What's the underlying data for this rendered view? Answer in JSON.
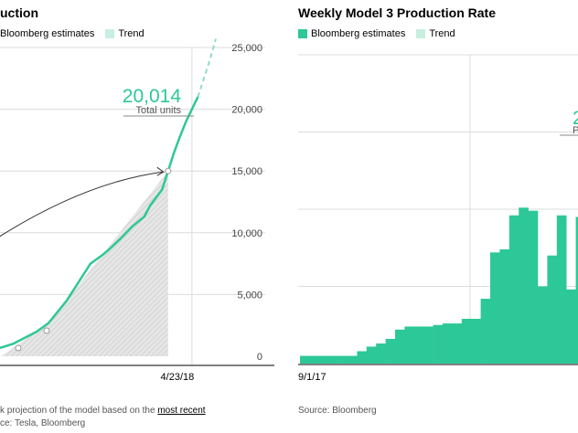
{
  "colors": {
    "estimate": "#2dc897",
    "trend": "#c7efe0",
    "grid": "#dcdcdc",
    "axis": "#000000",
    "shade": "#e6e6e6"
  },
  "left": {
    "title": "uction",
    "legend": {
      "estimate": "Bloomberg estimates",
      "trend": "Trend"
    },
    "callout": {
      "value": "20,014",
      "label": "Total units"
    },
    "footnote_prefix": "k projection of the model based on the ",
    "footnote_link": "most recent",
    "source": "ce: Tesla, Bloomberg"
  },
  "right": {
    "title": "Weekly Model 3 Production Rate",
    "legend": {
      "estimate": "Bloomberg estimates",
      "trend": "Trend"
    },
    "callout_fragment": "2",
    "callout_label_fragment": "P",
    "source": "Source: Bloomberg"
  },
  "chart_data": [
    {
      "type": "line",
      "title": "",
      "xlabel": "",
      "ylabel": "",
      "ylim": [
        0,
        25000
      ],
      "y_ticks": [
        "25,000",
        "20,000",
        "15,000",
        "10,000",
        "5,000",
        "0"
      ],
      "y_tick_values": [
        25000,
        20000,
        15000,
        10000,
        5000,
        0
      ],
      "x_tick_labels": [
        "4/23/18"
      ],
      "grid": true,
      "legend_position": "top-left",
      "series": [
        {
          "name": "Bloomberg estimates",
          "x": [
            0,
            4,
            8,
            12,
            16,
            20,
            22,
            26,
            30,
            34,
            38,
            40,
            44,
            48,
            52,
            54,
            58,
            60,
            62,
            64,
            66,
            68,
            70
          ],
          "values": [
            500,
            700,
            1000,
            1500,
            2000,
            2700,
            3300,
            4500,
            6000,
            7500,
            8200,
            8600,
            9500,
            10500,
            11300,
            12200,
            13500,
            15000,
            16500,
            17800,
            19000,
            20014,
            21000
          ]
        },
        {
          "name": "Trend",
          "x": [
            70,
            72,
            74,
            76
          ],
          "values": [
            21000,
            22500,
            24000,
            25700
          ]
        }
      ],
      "annotations": [
        {
          "text": "20,014",
          "sub": "Total units"
        }
      ]
    },
    {
      "type": "bar",
      "title": "Weekly Model 3 Production Rate",
      "xlabel": "",
      "ylabel": "",
      "x_tick_labels": [
        "9/1/17"
      ],
      "grid": true,
      "legend_position": "top-left",
      "series": [
        {
          "name": "Bloomberg estimates",
          "values": [
            50,
            50,
            50,
            50,
            50,
            50,
            80,
            110,
            130,
            160,
            220,
            240,
            240,
            240,
            250,
            260,
            260,
            290,
            290,
            420,
            720,
            740,
            960,
            1010,
            990,
            500,
            700,
            960,
            480,
            950
          ]
        }
      ]
    }
  ]
}
